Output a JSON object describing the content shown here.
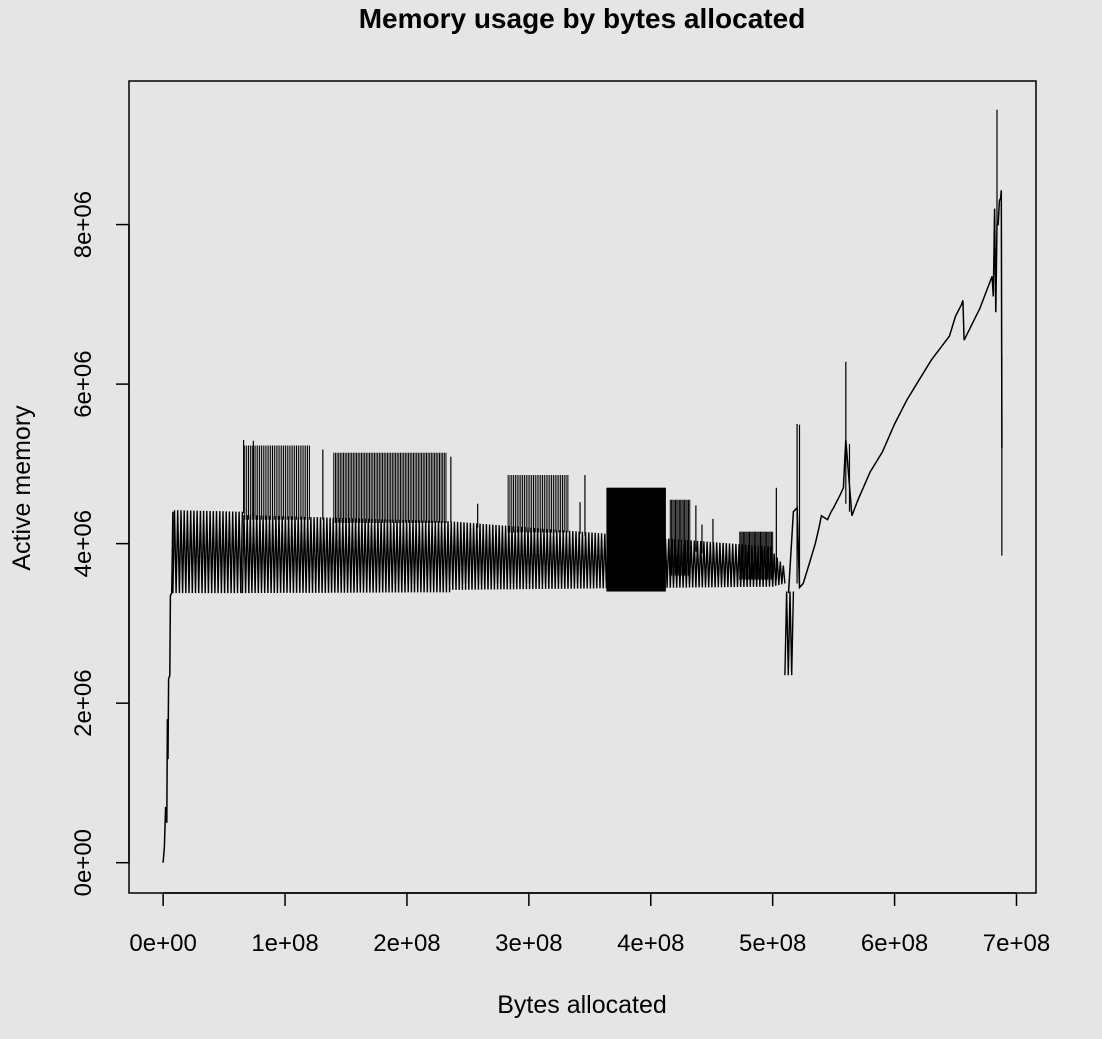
{
  "chart_data": {
    "type": "line",
    "title": "Memory usage by bytes allocated",
    "xlabel": "Bytes allocated",
    "ylabel": "Active memory",
    "xlim": [
      -28000000,
      716000000
    ],
    "ylim": [
      -380000,
      9800000
    ],
    "grid": false,
    "x_ticks": [
      {
        "value": 0,
        "label": "0e+00"
      },
      {
        "value": 100000000,
        "label": "1e+08"
      },
      {
        "value": 200000000,
        "label": "2e+08"
      },
      {
        "value": 300000000,
        "label": "3e+08"
      },
      {
        "value": 400000000,
        "label": "4e+08"
      },
      {
        "value": 500000000,
        "label": "5e+08"
      },
      {
        "value": 600000000,
        "label": "6e+08"
      },
      {
        "value": 700000000,
        "label": "7e+08"
      }
    ],
    "y_ticks": [
      {
        "value": 0,
        "label": "0e+00"
      },
      {
        "value": 2000000,
        "label": "2e+06"
      },
      {
        "value": 4000000,
        "label": "4e+06"
      },
      {
        "value": 6000000,
        "label": "6e+06"
      },
      {
        "value": 8000000,
        "label": "8e+06"
      }
    ],
    "oscillation_bands": [
      {
        "x0": 8000000,
        "x1": 65000000,
        "low0": 3380000,
        "high0": 4420000,
        "low1": 3380000,
        "high1": 4400000
      },
      {
        "x0": 65000000,
        "x1": 235000000,
        "low0": 3380000,
        "high0": 4360000,
        "low1": 3390000,
        "high1": 4280000
      },
      {
        "x0": 235000000,
        "x1": 500000000,
        "low0": 3420000,
        "high0": 4280000,
        "low1": 3460000,
        "high1": 3960000
      },
      {
        "x0": 500000000,
        "x1": 510000000,
        "low0": 3460000,
        "high0": 3900000,
        "low1": 3500000,
        "high1": 3700000
      },
      {
        "x0": 510000000,
        "x1": 517000000,
        "low0": 2350000,
        "high0": 3400000,
        "low1": 2350000,
        "high1": 3400000
      }
    ],
    "spike_groups": [
      {
        "x0": 67000000,
        "x1": 120000000,
        "top": 5230000,
        "base": 4300000,
        "count": 36
      },
      {
        "x0": 140000000,
        "x1": 232000000,
        "top": 5140000,
        "base": 4260000,
        "count": 70
      },
      {
        "x0": 283000000,
        "x1": 332000000,
        "top": 4860000,
        "base": 4140000,
        "count": 34
      },
      {
        "x0": 364000000,
        "x1": 412000000,
        "top": 4700000,
        "base": 3400000,
        "count": 120
      },
      {
        "x0": 416000000,
        "x1": 432000000,
        "top": 4550000,
        "base": 3600000,
        "count": 16
      },
      {
        "x0": 473000000,
        "x1": 500000000,
        "top": 4150000,
        "base": 3550000,
        "count": 28
      }
    ],
    "single_spikes": [
      {
        "x": 66000000,
        "top": 5300000,
        "base": 4380000
      },
      {
        "x": 74000000,
        "top": 5290000,
        "base": 4340000
      },
      {
        "x": 131000000,
        "top": 5180000,
        "base": 4300000
      },
      {
        "x": 236000000,
        "top": 5090000,
        "base": 4270000
      },
      {
        "x": 258000000,
        "top": 4500000,
        "base": 4200000
      },
      {
        "x": 342000000,
        "top": 4520000,
        "base": 4120000
      },
      {
        "x": 346000000,
        "top": 4860000,
        "base": 4100000
      },
      {
        "x": 437000000,
        "top": 4480000,
        "base": 3900000
      },
      {
        "x": 442000000,
        "top": 4240000,
        "base": 3880000
      },
      {
        "x": 451000000,
        "top": 4310000,
        "base": 3800000
      },
      {
        "x": 503000000,
        "top": 4700000,
        "base": 3550000
      },
      {
        "x": 520000000,
        "top": 5500000,
        "base": 3500000
      },
      {
        "x": 522000000,
        "top": 5490000,
        "base": 3500000
      },
      {
        "x": 560000000,
        "top": 6280000,
        "base": 4500000
      },
      {
        "x": 563000000,
        "top": 5250000,
        "base": 4400000
      },
      {
        "x": 684000000,
        "top": 9440000,
        "base": 8000000
      },
      {
        "x": 688000000,
        "top": 6350000,
        "base": 3850000
      }
    ],
    "start_line": {
      "x": [
        0,
        1000000,
        2000000,
        3000000,
        3500000,
        4000000,
        4500000,
        5000000,
        5500000,
        6000000,
        7000000,
        8000000
      ],
      "y": [
        0,
        200000,
        700000,
        500000,
        1800000,
        1300000,
        2300000,
        2330000,
        2340000,
        3350000,
        3380000,
        4400000
      ]
    },
    "main_line": {
      "x": [
        513000000,
        517000000,
        520000000,
        522000000,
        525000000,
        530000000,
        535000000,
        538000000,
        540000000,
        545000000,
        548000000,
        550000000,
        555000000,
        558000000,
        560000000,
        565000000,
        570000000,
        580000000,
        590000000,
        600000000,
        610000000,
        620000000,
        630000000,
        640000000,
        645000000,
        650000000,
        655000000,
        656000000,
        657000000,
        670000000,
        680000000,
        681000000,
        682000000,
        683000000,
        684000000,
        685000000,
        686000000,
        687000000,
        687500000,
        688000000
      ],
      "y": [
        3380000,
        4400000,
        4450000,
        3450000,
        3500000,
        3750000,
        4000000,
        4200000,
        4350000,
        4300000,
        4400000,
        4450000,
        4600000,
        4700000,
        5300000,
        4350000,
        4550000,
        4900000,
        5150000,
        5500000,
        5800000,
        6050000,
        6300000,
        6500000,
        6600000,
        6850000,
        7000000,
        7050000,
        6550000,
        6950000,
        7350000,
        7100000,
        8200000,
        6900000,
        8000000,
        8000000,
        8300000,
        8330000,
        8430000,
        5200000
      ]
    }
  }
}
